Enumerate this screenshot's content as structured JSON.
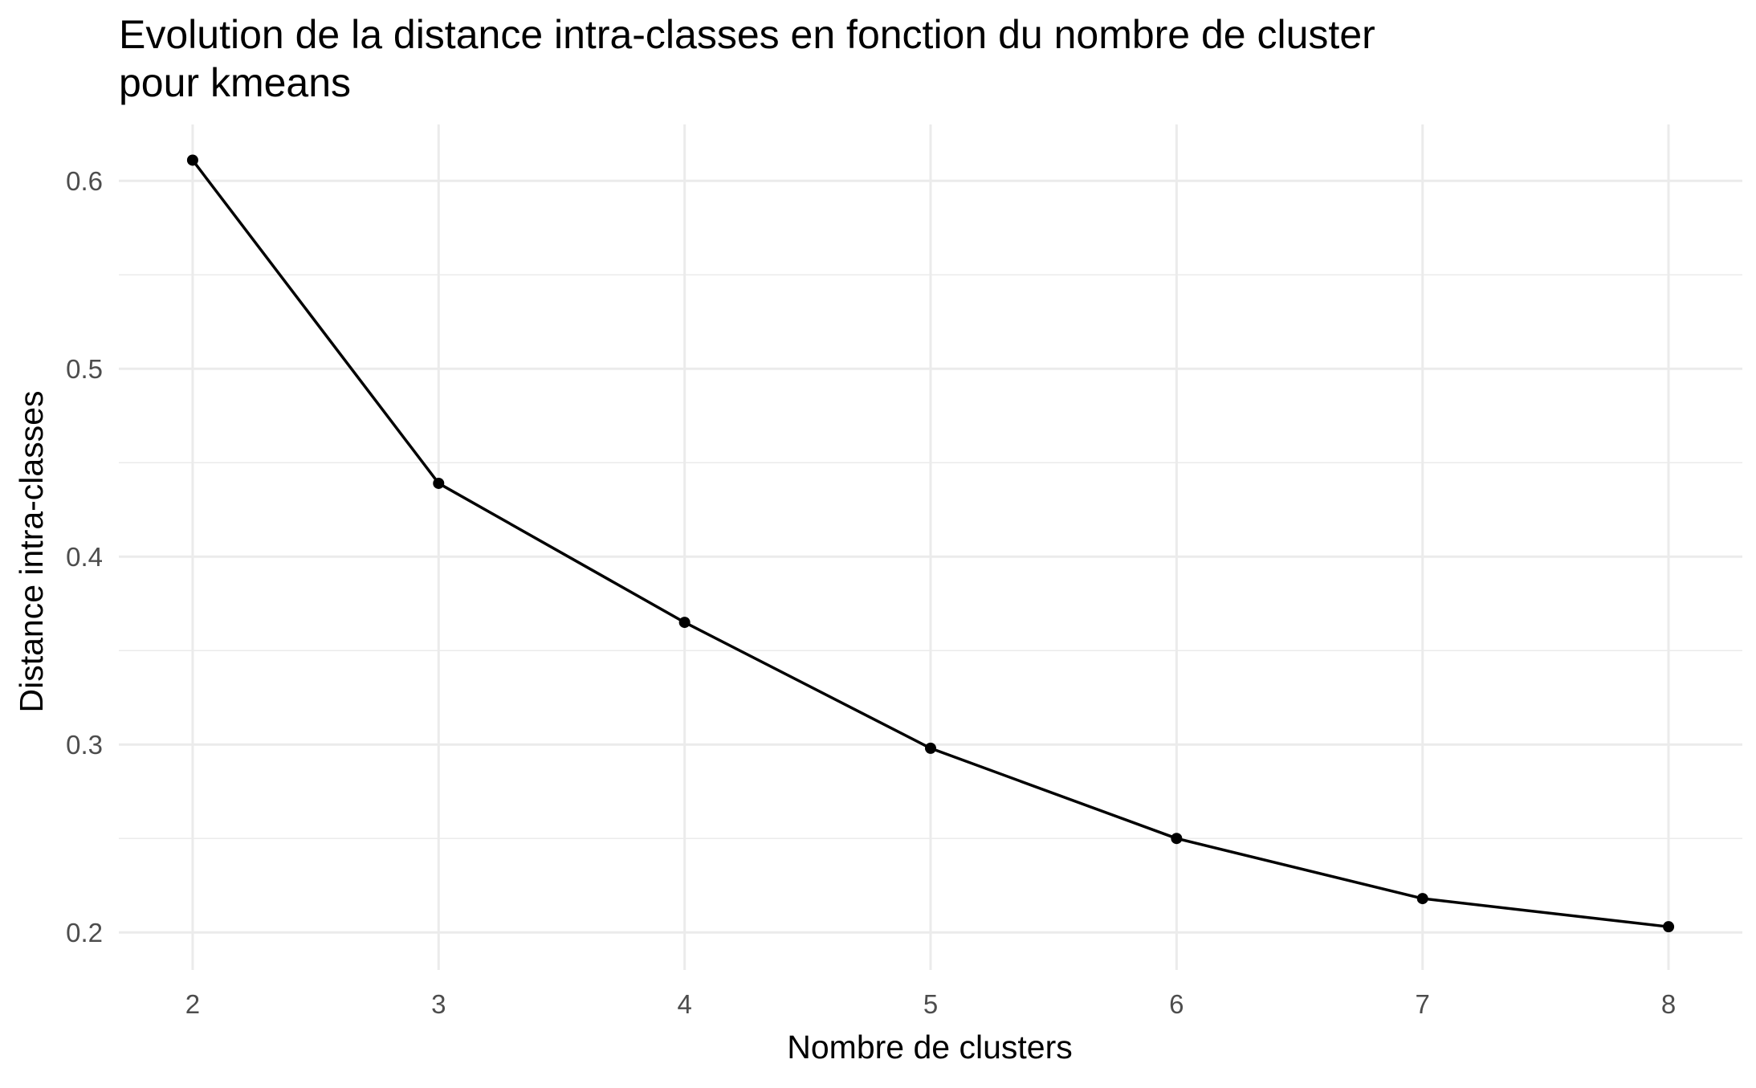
{
  "chart_data": {
    "type": "line",
    "title_lines": [
      "Evolution de la distance intra-classes en fonction du nombre de cluster",
      "pour kmeans"
    ],
    "xlabel": "Nombre de clusters",
    "ylabel": "Distance intra-classes",
    "x": [
      2,
      3,
      4,
      5,
      6,
      7,
      8
    ],
    "y": [
      0.611,
      0.439,
      0.365,
      0.298,
      0.25,
      0.218,
      0.203
    ],
    "x_ticks": [
      "2",
      "3",
      "4",
      "5",
      "6",
      "7",
      "8"
    ],
    "y_ticks": [
      "0.2",
      "0.3",
      "0.4",
      "0.5",
      "0.6"
    ],
    "xlim": [
      1.7,
      8.3
    ],
    "ylim": [
      0.18,
      0.63
    ],
    "grid": true,
    "legend": "none",
    "colors": {
      "line": "#000000",
      "points": "#000000",
      "grid": "#ebebeb",
      "tick_text": "#4d4d4d",
      "background": "#ffffff"
    }
  }
}
